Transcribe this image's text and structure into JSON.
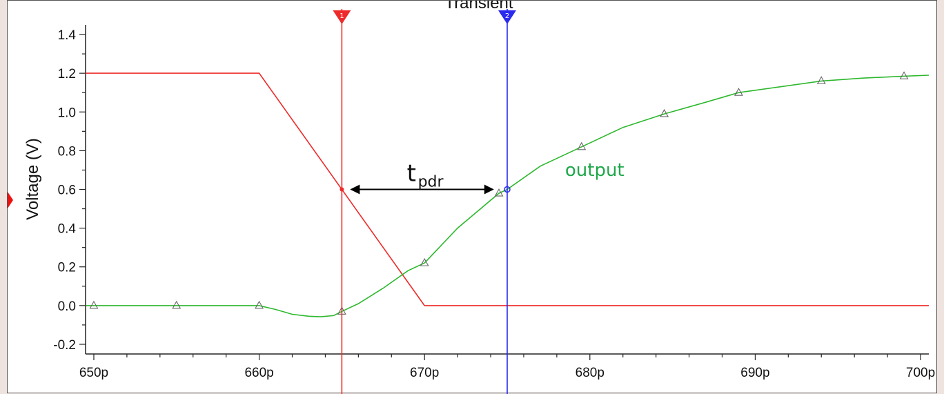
{
  "chart_data": {
    "type": "line",
    "title": "Transient",
    "ylabel": "Voltage (V)",
    "xlabel": "",
    "xlim": [
      649.5,
      700.5
    ],
    "ylim": [
      -0.25,
      1.45
    ],
    "x_ticks": [
      "650p",
      "660p",
      "670p",
      "680p",
      "690p",
      "700p"
    ],
    "x_tick_values": [
      650,
      660,
      670,
      680,
      690,
      700
    ],
    "y_ticks": [
      "1.4",
      "1.2",
      "1.0",
      "0.8",
      "0.6",
      "0.4",
      "0.2",
      "0.0",
      "-0.2"
    ],
    "y_tick_values": [
      1.4,
      1.2,
      1.0,
      0.8,
      0.6,
      0.4,
      0.2,
      0.0,
      -0.2
    ],
    "series": [
      {
        "name": "",
        "color": "#ee2a2a",
        "x": [
          649.5,
          660,
          665,
          670,
          700.5
        ],
        "y": [
          1.2,
          1.2,
          0.6,
          0.0,
          0.0
        ],
        "markers": false
      },
      {
        "name": "output",
        "color": "#2db82d",
        "x": [
          649.5,
          650,
          655,
          660,
          661,
          662,
          663,
          663.7,
          664.5,
          665,
          666,
          667.5,
          669,
          670,
          672,
          674.5,
          675,
          677,
          679.5,
          682,
          684.5,
          687,
          689,
          691.5,
          694,
          696.5,
          699,
          700.5
        ],
        "y": [
          0.0,
          0.0,
          0.0,
          0.0,
          -0.02,
          -0.045,
          -0.055,
          -0.058,
          -0.052,
          -0.03,
          0.01,
          0.09,
          0.18,
          0.22,
          0.4,
          0.58,
          0.6,
          0.72,
          0.82,
          0.92,
          0.99,
          1.05,
          1.1,
          1.13,
          1.16,
          1.175,
          1.185,
          1.19
        ],
        "marker_x": [
          650,
          655,
          660,
          665,
          670,
          674.5,
          679.5,
          684.5,
          689,
          694,
          699
        ],
        "marker_y": [
          0.0,
          0.0,
          0.0,
          -0.03,
          0.22,
          0.58,
          0.82,
          0.99,
          1.1,
          1.16,
          1.185
        ]
      }
    ],
    "cursors": [
      {
        "label": "1",
        "x": 665,
        "color": "#ee2a2a"
      },
      {
        "label": "2",
        "x": 675,
        "color": "#2a2aee"
      }
    ],
    "annotations": {
      "tpdr_main": "t",
      "tpdr_sub": "pdr",
      "tpdr_from_x": 665.5,
      "tpdr_to_x": 674.2,
      "tpdr_y": 0.6,
      "output_label": "output",
      "output_label_x": 678.5,
      "output_label_y": 0.67
    },
    "grid": false,
    "legend": "none"
  }
}
